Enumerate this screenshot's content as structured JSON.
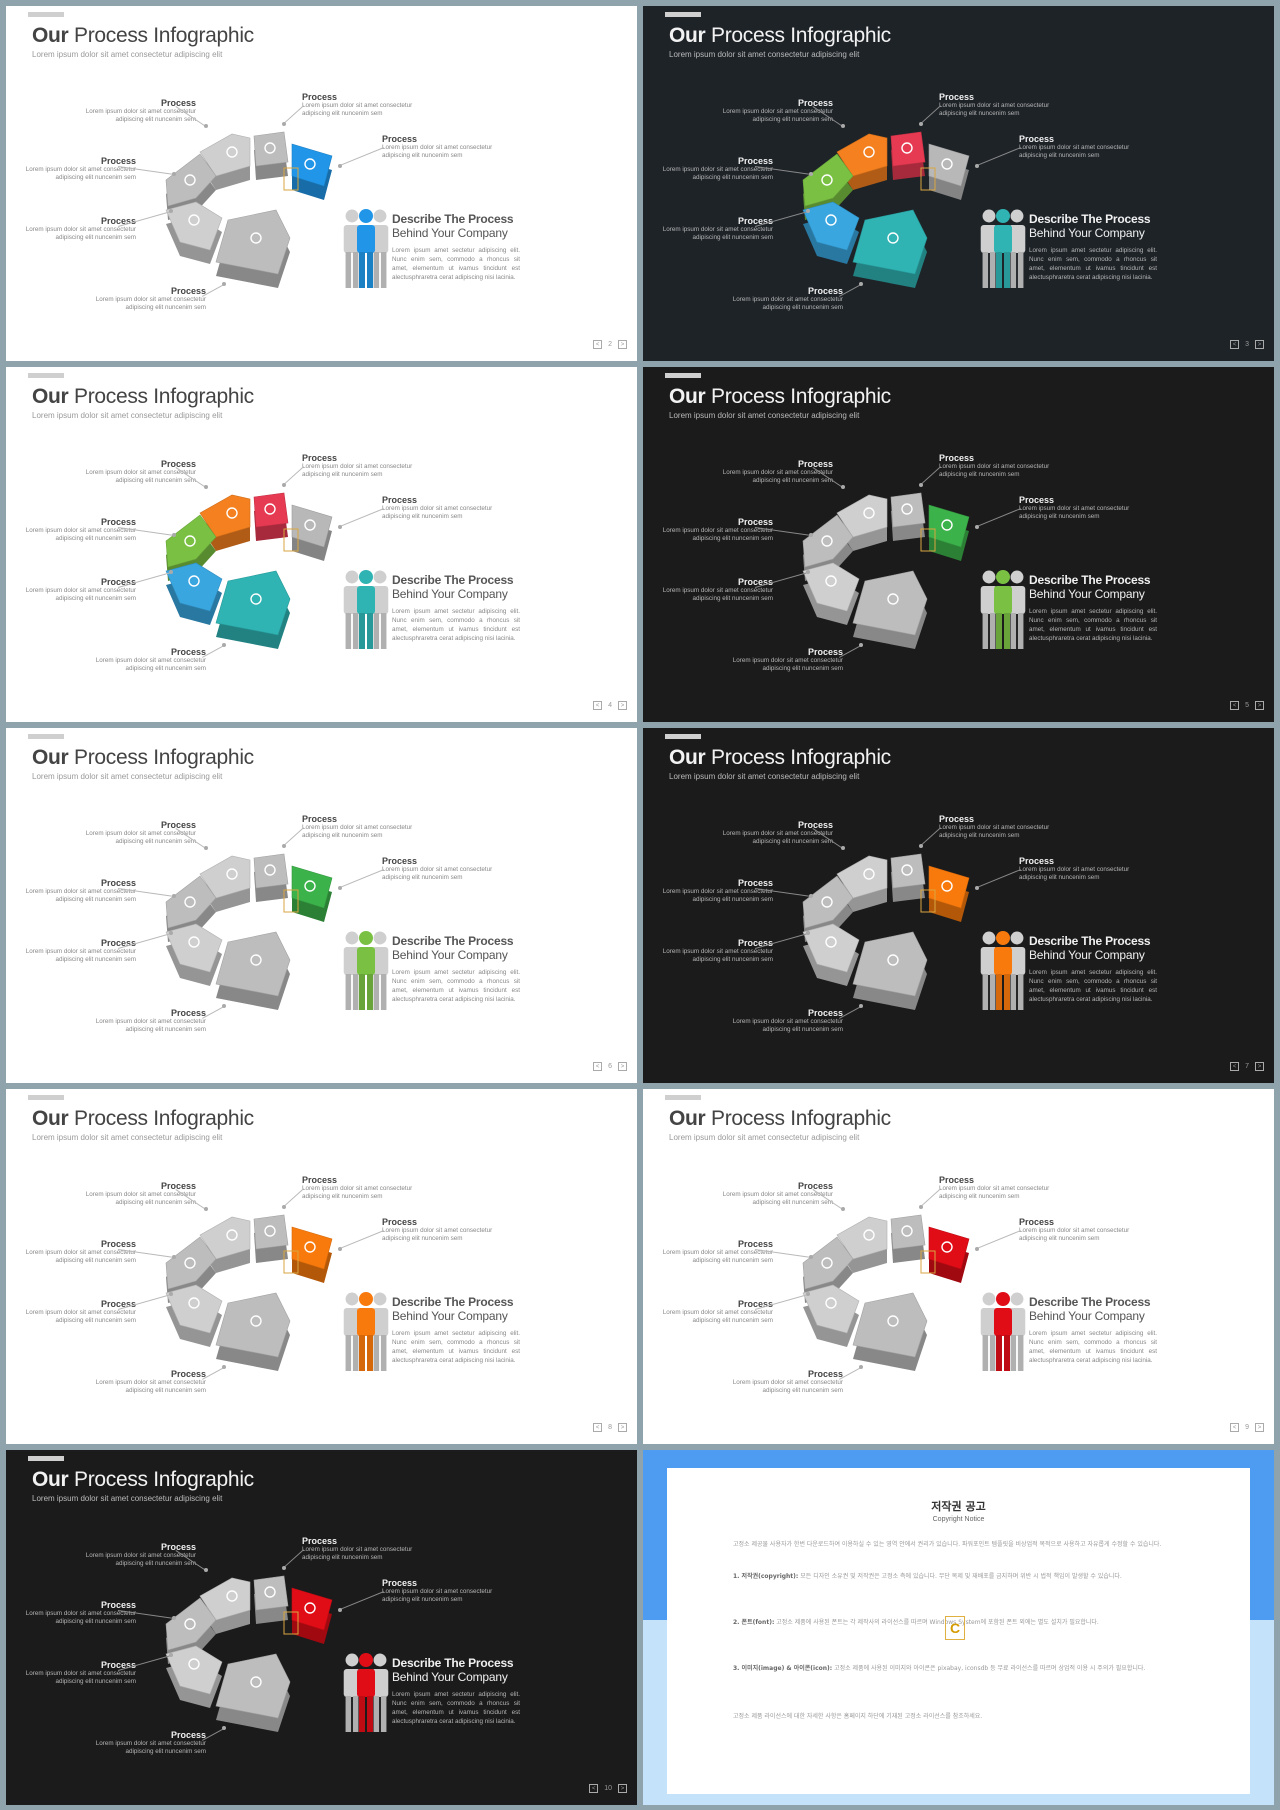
{
  "slide_title_bold": "Our",
  "slide_title_rest": "Process Infographic",
  "slide_subtitle": "Lorem ipsum dolor sit amet consectetur adipiscing elit",
  "process_label": "Process",
  "process_text_line1": "Lorem ipsum dolor sit amet consectetur",
  "process_text_line2": "adipiscing elit nuncenim sem",
  "describe_line1": "Describe The Process",
  "describe_line2": "Behind Your Company",
  "describe_body": "Lorem ipsum amet sectetur adipiscing elit. Nunc enim sem, commodo a rhoncus sit amet, elementum ut ivamus tincidunt est alectusphraretra cerat adipiscing nisi lacinia.",
  "colors": {
    "gray": "#c9c9c9",
    "gray_dark": "#a9a9a9",
    "blue": "#2196e8",
    "green": "#7ac143",
    "orange": "#f4801f",
    "red": "#e63a52",
    "teal": "#2fb3b3",
    "sky": "#39a6e0",
    "grass": "#3cb24a",
    "amber": "#f97a0c",
    "crimson": "#e00d17"
  },
  "slides": [
    {
      "theme": "light",
      "page": "2",
      "highlight": {
        "pos": 3,
        "color": "#2196e8"
      },
      "people_color": "#2196e8",
      "multicolor": false
    },
    {
      "theme": "navy",
      "page": "3",
      "multicolor": true,
      "people_color": "#2fb3b3"
    },
    {
      "theme": "light",
      "page": "4",
      "multicolor": true,
      "people_color": "#2fb3b3"
    },
    {
      "theme": "dark",
      "page": "5",
      "highlight": {
        "pos": 3,
        "color": "#3cb24a"
      },
      "people_color": "#7ac143",
      "multicolor": false
    },
    {
      "theme": "light",
      "page": "6",
      "highlight": {
        "pos": 3,
        "color": "#3cb24a"
      },
      "people_color": "#7ac143",
      "multicolor": false
    },
    {
      "theme": "dark",
      "page": "7",
      "highlight": {
        "pos": 3,
        "color": "#f97a0c"
      },
      "people_color": "#f97a0c",
      "multicolor": false
    },
    {
      "theme": "light",
      "page": "8",
      "highlight": {
        "pos": 3,
        "color": "#f97a0c"
      },
      "people_color": "#f97a0c",
      "multicolor": false
    },
    {
      "theme": "light",
      "page": "9",
      "highlight": {
        "pos": 3,
        "color": "#e00d17"
      },
      "people_color": "#e00d17",
      "multicolor": false
    },
    {
      "theme": "dark",
      "page": "10",
      "highlight": {
        "pos": 3,
        "color": "#e00d17"
      },
      "people_color": "#e00d17",
      "multicolor": false
    }
  ],
  "copyright": {
    "title": "저작권 공고",
    "subtitle": "Copyright Notice",
    "intro": "고정소 제공물 사용자가 한번 다운로드하여 이용하실 수 있는 영역 안에서 권리가 있습니다. 파워포인트 템플릿을 비상업적 목적으로 사용하고 자유롭게 수정할 수 있습니다.",
    "p1_title": "1. 저작권(copyright):",
    "p1": "모든 디자인 소유권 및 저작권은 고정소 측에 있습니다. 무단 복제 및 재배포를 금지하며 위반 시 법적 책임이 발생할 수 있습니다.",
    "p2_title": "2. 폰트(font):",
    "p2": "고정소 제품에 사용된 폰트는 각 제작사의 라이선스를 따르며 Windows System에 포함된 폰트 외에는 별도 설치가 필요합니다.",
    "p3_title": "3. 이미지(image) & 아이콘(icon):",
    "p3": "고정소 제품에 사용된 이미지와 아이콘은 pixabay, iconsdb 등 무료 라이선스를 따르며 상업적 이용 시 주의가 필요합니다.",
    "outro": "고정소 제품 라이선스에 대한 자세한 사항은 홈페이지 하단에 기재된 고정소 라이선스를 참조하세요.",
    "logo": "C"
  }
}
